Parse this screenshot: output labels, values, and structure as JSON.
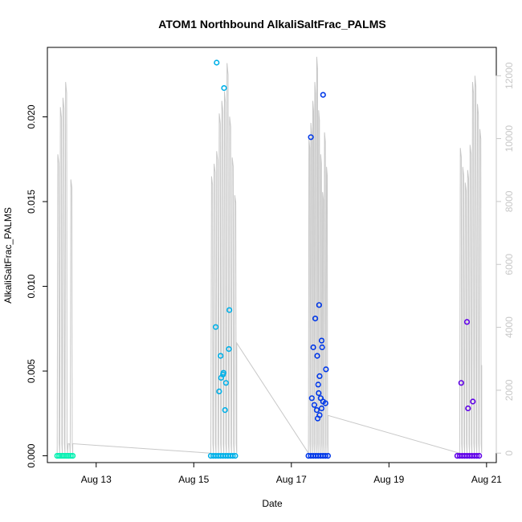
{
  "chart_data": {
    "type": "scatter",
    "title": "ATOM1 Northbound AlkaliSaltFrac_PALMS",
    "xlabel": "Date",
    "ylabel": "AlkaliSaltFrac_PALMS",
    "x_ticks": [
      {
        "label": "Aug 13",
        "day": 13
      },
      {
        "label": "Aug 15",
        "day": 15
      },
      {
        "label": "Aug 17",
        "day": 17
      },
      {
        "label": "Aug 19",
        "day": 19
      },
      {
        "label": "Aug 21",
        "day": 21
      }
    ],
    "xlim_days": [
      12.0,
      21.2
    ],
    "y_ticks": [
      "0.000",
      "0.005",
      "0.010",
      "0.015",
      "0.020"
    ],
    "ylim": [
      -0.0004,
      0.0241
    ],
    "y2_ticks": [
      "0",
      "2000",
      "4000",
      "6000",
      "8000",
      "10000",
      "12000"
    ],
    "y2lim": [
      -300,
      12900
    ],
    "series": [
      {
        "color": "#00f0b0",
        "points": [
          [
            12.2,
            0
          ],
          [
            12.24,
            0
          ],
          [
            12.28,
            0
          ],
          [
            12.32,
            0
          ],
          [
            12.36,
            0
          ],
          [
            12.4,
            0
          ],
          [
            12.44,
            0
          ],
          [
            12.48,
            0
          ],
          [
            12.52,
            0
          ]
        ]
      },
      {
        "color": "#00b0e8",
        "points": [
          [
            15.35,
            0
          ],
          [
            15.4,
            0
          ],
          [
            15.45,
            0
          ],
          [
            15.5,
            0
          ],
          [
            15.55,
            0
          ],
          [
            15.6,
            0
          ],
          [
            15.65,
            0
          ],
          [
            15.7,
            0
          ],
          [
            15.75,
            0
          ],
          [
            15.8,
            0
          ],
          [
            15.85,
            0
          ],
          [
            15.47,
            0.0232
          ],
          [
            15.62,
            0.0217
          ],
          [
            15.73,
            0.0086
          ],
          [
            15.45,
            0.0076
          ],
          [
            15.72,
            0.0063
          ],
          [
            15.55,
            0.0059
          ],
          [
            15.6,
            0.0048
          ],
          [
            15.56,
            0.0046
          ],
          [
            15.61,
            0.0049
          ],
          [
            15.66,
            0.0043
          ],
          [
            15.52,
            0.0038
          ],
          [
            15.64,
            0.0027
          ]
        ]
      },
      {
        "color": "#0038e8",
        "points": [
          [
            17.35,
            0
          ],
          [
            17.4,
            0
          ],
          [
            17.45,
            0
          ],
          [
            17.5,
            0
          ],
          [
            17.55,
            0
          ],
          [
            17.6,
            0
          ],
          [
            17.65,
            0
          ],
          [
            17.7,
            0
          ],
          [
            17.75,
            0
          ],
          [
            17.65,
            0.0213
          ],
          [
            17.4,
            0.0188
          ],
          [
            17.57,
            0.0089
          ],
          [
            17.49,
            0.0081
          ],
          [
            17.62,
            0.0068
          ],
          [
            17.45,
            0.0064
          ],
          [
            17.63,
            0.0064
          ],
          [
            17.53,
            0.0059
          ],
          [
            17.71,
            0.0051
          ],
          [
            17.58,
            0.0047
          ],
          [
            17.55,
            0.0042
          ],
          [
            17.42,
            0.0034
          ],
          [
            17.56,
            0.0037
          ],
          [
            17.6,
            0.0034
          ],
          [
            17.65,
            0.0032
          ],
          [
            17.7,
            0.0031
          ],
          [
            17.47,
            0.003
          ],
          [
            17.62,
            0.0028
          ],
          [
            17.52,
            0.0027
          ],
          [
            17.58,
            0.0024
          ],
          [
            17.54,
            0.0022
          ]
        ]
      },
      {
        "color": "#6000e8",
        "points": [
          [
            20.4,
            0
          ],
          [
            20.45,
            0
          ],
          [
            20.5,
            0
          ],
          [
            20.55,
            0
          ],
          [
            20.6,
            0
          ],
          [
            20.65,
            0
          ],
          [
            20.7,
            0
          ],
          [
            20.75,
            0
          ],
          [
            20.8,
            0
          ],
          [
            20.85,
            0
          ],
          [
            20.6,
            0.0079
          ],
          [
            20.48,
            0.0043
          ],
          [
            20.72,
            0.0032
          ],
          [
            20.62,
            0.0028
          ]
        ]
      }
    ],
    "right_axis_line_color": "#c8c8c8"
  }
}
